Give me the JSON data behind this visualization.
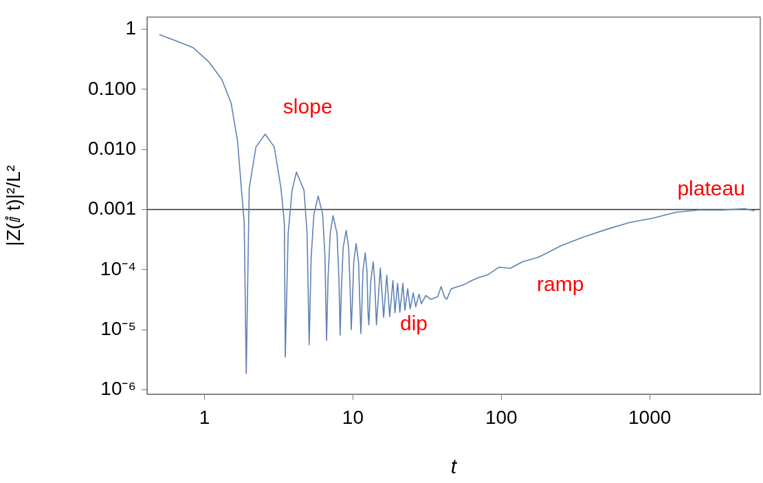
{
  "chart_data": {
    "type": "line",
    "xlabel": "t",
    "ylabel": "|Z(ⅈ t)|²/L²",
    "log": "xy",
    "color": "#5e81b5",
    "x": [
      0.496,
      0.834,
      1.065,
      1.31,
      1.51,
      1.67,
      1.77,
      1.85,
      1.91,
      2.0,
      2.22,
      2.56,
      2.95,
      3.27,
      3.45,
      3.5,
      3.66,
      3.89,
      4.16,
      4.68,
      4.91,
      5.07,
      5.23,
      5.46,
      5.83,
      6.25,
      6.48,
      6.64,
      6.8,
      7.03,
      7.34,
      7.81,
      8.04,
      8.2,
      8.35,
      8.59,
      9.0,
      9.36,
      9.59,
      9.74,
      9.9,
      10.13,
      10.5,
      10.91,
      11.14,
      11.3,
      11.45,
      11.68,
      12.1,
      12.43,
      12.65,
      12.8,
      13.2,
      13.7,
      14.0,
      14.4,
      15.3,
      16.1,
      16.9,
      17.7,
      18.6,
      19.2,
      20.0,
      20.7,
      21.7,
      22.4,
      23.4,
      24.3,
      25.5,
      26.5,
      27.9,
      28.9,
      31.0,
      33.4,
      37.2,
      39.3,
      41.4,
      42.9,
      46.0,
      51.1,
      56.9,
      61.1,
      70.5,
      81.2,
      96.7,
      115,
      138,
      177,
      204,
      253,
      361,
      516,
      736,
      1053,
      1500,
      2145,
      3070,
      4380,
      5100
    ],
    "values": [
      0.82,
      0.5,
      0.29,
      0.145,
      0.059,
      0.0135,
      0.00226,
      0.0006,
      1.84e-06,
      0.00226,
      0.011,
      0.018,
      0.011,
      0.0023,
      0.0006,
      3.5e-06,
      0.0004,
      0.0021,
      0.0042,
      0.0021,
      0.0004,
      5.6e-06,
      0.00016,
      0.00084,
      0.00167,
      0.00084,
      0.00016,
      6.6e-06,
      7.5e-05,
      0.0004,
      0.00079,
      0.0004,
      7.5e-05,
      8.1e-06,
      4.3e-05,
      0.00023,
      0.00045,
      0.00023,
      4.3e-05,
      1e-05,
      2.6e-05,
      0.000135,
      0.00027,
      0.000135,
      2.6e-05,
      8.6e-06,
      1.8e-05,
      9.5e-05,
      0.00019,
      9.5e-05,
      1.8e-05,
      1.2e-05,
      6.7e-05,
      0.000134,
      6.7e-05,
      1.2e-05,
      0.000107,
      1.6e-05,
      8.1e-05,
      1.65e-05,
      6.6e-05,
      1.9e-05,
      5.9e-05,
      1.96e-05,
      5.9e-05,
      2.1e-05,
      4.8e-05,
      2.2e-05,
      4.1e-05,
      2.4e-05,
      3.9e-05,
      2.7e-05,
      3.7e-05,
      3.2e-05,
      3.5e-05,
      5.2e-05,
      3.5e-05,
      3.2e-05,
      4.8e-05,
      5.2e-05,
      5.7e-05,
      6.3e-05,
      7.4e-05,
      8.2e-05,
      0.00011,
      0.000105,
      0.000134,
      0.00016,
      0.00019,
      0.00025,
      0.00035,
      0.00047,
      0.00061,
      0.00072,
      0.0009,
      0.00098,
      0.00098,
      0.00103,
      0.00095
    ],
    "xlim": [
      0.41,
      5560
    ],
    "ylim": [
      8.4e-07,
      1.6
    ],
    "xticks": [
      1,
      10,
      100,
      1000
    ],
    "yticks": [
      1,
      {
        "value": 0.1,
        "label": "0.100"
      },
      {
        "value": 0.01,
        "label": "0.010"
      },
      0.001,
      {
        "value": 0.0001,
        "label": "10⁻⁴"
      },
      {
        "value": 1e-05,
        "label": "10⁻⁵"
      },
      {
        "value": 1e-06,
        "label": "10⁻⁶"
      }
    ],
    "ref_lines": [
      {
        "axis": "y",
        "value": 0.001,
        "color": "#333333"
      }
    ],
    "annotations": [
      "slope",
      "dip",
      "ramp",
      "plateau"
    ]
  }
}
